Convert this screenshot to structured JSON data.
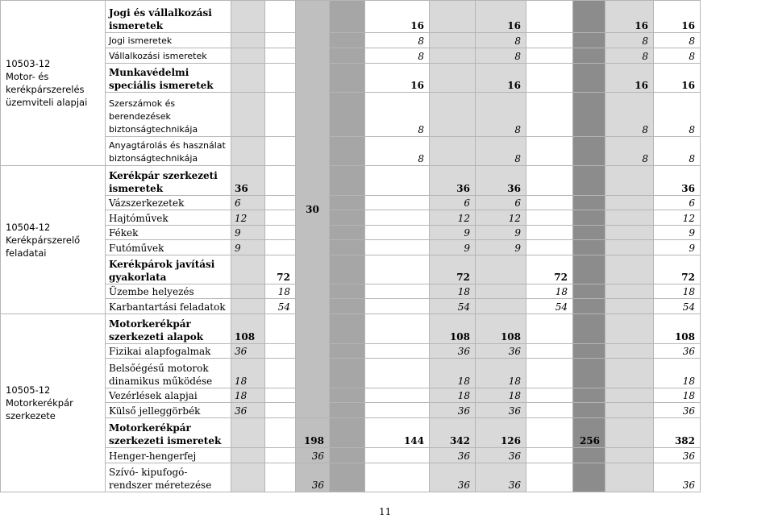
{
  "modules": [
    {
      "code_lines": [
        "10503-12",
        "Motor- és",
        "kerékpárszerelés",
        "üzemviteli alapjai"
      ]
    },
    {
      "code_lines": [
        "10504-12",
        "Kerékpárszerelő",
        "feladatai"
      ]
    },
    {
      "code_lines": [
        "10505-12",
        "Motorkerékpár",
        "szerkezete"
      ]
    }
  ],
  "spanned_value": "30",
  "rows": [
    {
      "name": "Jogi és vállalkozási ismeretek",
      "style": "bold",
      "c": [
        "",
        "",
        "",
        "",
        "16",
        "",
        "16",
        "",
        "",
        "16",
        "16"
      ]
    },
    {
      "name": "Jogi ismeretek",
      "style": "sans",
      "c": [
        "",
        "",
        "",
        "",
        "8",
        "",
        "8",
        "",
        "",
        "8",
        "8"
      ]
    },
    {
      "name": "Vállalkozási ismeretek",
      "style": "sans",
      "c": [
        "",
        "",
        "",
        "",
        "8",
        "",
        "8",
        "",
        "",
        "8",
        "8"
      ]
    },
    {
      "name": "Munkavédelmi speciális ismeretek",
      "style": "bold",
      "c": [
        "",
        "",
        "",
        "",
        "16",
        "",
        "16",
        "",
        "",
        "16",
        "16"
      ]
    },
    {
      "name": "Szerszámok és berendezések biztonságtechnikája",
      "style": "sans",
      "c": [
        "",
        "",
        "",
        "",
        "8",
        "",
        "8",
        "",
        "",
        "8",
        "8"
      ]
    },
    {
      "name": "Anyagtárolás és használat biztonságtechnikája",
      "style": "sans",
      "c": [
        "",
        "",
        "",
        "",
        "8",
        "",
        "8",
        "",
        "",
        "8",
        "8"
      ]
    },
    {
      "name": "Kerékpár szerkezeti ismeretek",
      "style": "bold",
      "c": [
        "36",
        "",
        "",
        "",
        "",
        "36",
        "36",
        "",
        "",
        "",
        "36"
      ]
    },
    {
      "name": "Vázszerkezetek",
      "style": "plain",
      "c": [
        "6",
        "",
        "",
        "",
        "",
        "6",
        "6",
        "",
        "",
        "",
        "6"
      ]
    },
    {
      "name": "Hajtóművek",
      "style": "plain",
      "c": [
        "12",
        "",
        "",
        "",
        "",
        "12",
        "12",
        "",
        "",
        "",
        "12"
      ]
    },
    {
      "name": "Fékek",
      "style": "plain",
      "c": [
        "9",
        "",
        "",
        "",
        "",
        "9",
        "9",
        "",
        "",
        "",
        "9"
      ]
    },
    {
      "name": "Futóművek",
      "style": "plain",
      "c": [
        "9",
        "",
        "",
        "",
        "",
        "9",
        "9",
        "",
        "",
        "",
        "9"
      ]
    },
    {
      "name": "Kerékpárok javítási gyakorlata",
      "style": "bold",
      "c": [
        "",
        "72",
        "",
        "",
        "",
        "72",
        "",
        "72",
        "",
        "",
        "72"
      ]
    },
    {
      "name": "Üzembe helyezés",
      "style": "plain",
      "c": [
        "",
        "18",
        "",
        "",
        "",
        "18",
        "",
        "18",
        "",
        "",
        "18"
      ]
    },
    {
      "name": "Karbantartási feladatok",
      "style": "plain",
      "c": [
        "",
        "54",
        "",
        "",
        "",
        "54",
        "",
        "54",
        "",
        "",
        "54"
      ]
    },
    {
      "name": "Motorkerékpár szerkezeti alapok",
      "style": "bold",
      "c": [
        "108",
        "",
        "",
        "",
        "",
        "108",
        "108",
        "",
        "",
        "",
        "108"
      ]
    },
    {
      "name": "Fizikai alapfogalmak",
      "style": "plain",
      "c": [
        "36",
        "",
        "",
        "",
        "",
        "36",
        "36",
        "",
        "",
        "",
        "36"
      ]
    },
    {
      "name": "Belsőégésű motorok dinamikus működése",
      "style": "plain",
      "c": [
        "18",
        "",
        "",
        "",
        "",
        "18",
        "18",
        "",
        "",
        "",
        "18"
      ]
    },
    {
      "name": "Vezérlések alapjai",
      "style": "plain",
      "c": [
        "18",
        "",
        "",
        "",
        "",
        "18",
        "18",
        "",
        "",
        "",
        "18"
      ]
    },
    {
      "name": "Külső jelleggörbék",
      "style": "plain",
      "c": [
        "36",
        "",
        "",
        "",
        "",
        "36",
        "36",
        "",
        "",
        "",
        "36"
      ]
    },
    {
      "name": "Motorkerékpár szerkezeti ismeretek",
      "style": "bold",
      "c": [
        "",
        "",
        "198",
        "",
        "144",
        "342",
        "126",
        "",
        "256",
        "",
        "382"
      ]
    },
    {
      "name": "Henger-hengerfej",
      "style": "plain",
      "c": [
        "",
        "",
        "36",
        "",
        "",
        "36",
        "36",
        "",
        "",
        "",
        "36"
      ]
    },
    {
      "name": "Szívó- kipufogó-rendszer méretezése",
      "style": "plain",
      "c": [
        "",
        "",
        "36",
        "",
        "",
        "36",
        "36",
        "",
        "",
        "",
        "36"
      ]
    }
  ],
  "page_number": "11"
}
